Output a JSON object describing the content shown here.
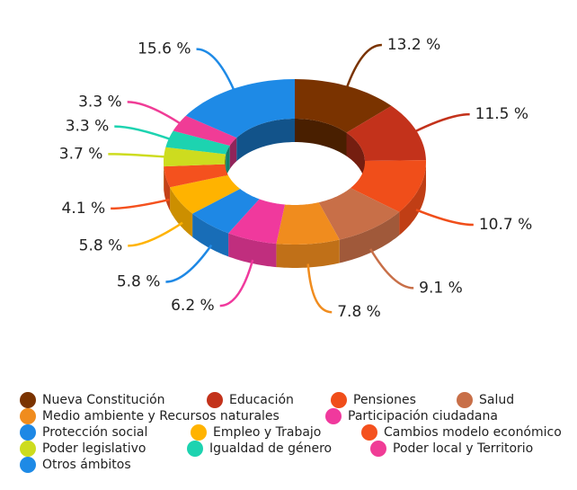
{
  "chart_data": {
    "type": "donut",
    "categories": [
      "Nueva Constitución",
      "Educación",
      "Pensiones",
      "Salud",
      "Medio ambiente y Recursos naturales",
      "Participación ciudadana",
      "Protección social",
      "Empleo y Trabajo",
      "Cambios modelo económico",
      "Poder legislativo",
      "Igualdad de género",
      "Poder local y Territorio",
      "Otros ámbitos"
    ],
    "values": [
      13.2,
      11.5,
      10.7,
      9.1,
      7.8,
      6.2,
      5.8,
      5.8,
      4.1,
      3.7,
      3.3,
      3.3,
      15.6
    ],
    "value_labels": [
      "13.2 %",
      "11.5 %",
      "10.7 %",
      "9.1 %",
      "7.8 %",
      "6.2 %",
      "5.8 %",
      "5.8 %",
      "4.1 %",
      "3.7 %",
      "3.3 %",
      "3.3 %",
      "15.6 %"
    ],
    "colors": [
      "#7a3300",
      "#c3321b",
      "#f04e1a",
      "#c86f48",
      "#f08c1e",
      "#f0399d",
      "#1e88e5",
      "#ffb300",
      "#f4511e",
      "#cddc1f",
      "#1dd3b0",
      "#f03c96",
      "#1e8ae6"
    ],
    "legend": "bottom"
  }
}
